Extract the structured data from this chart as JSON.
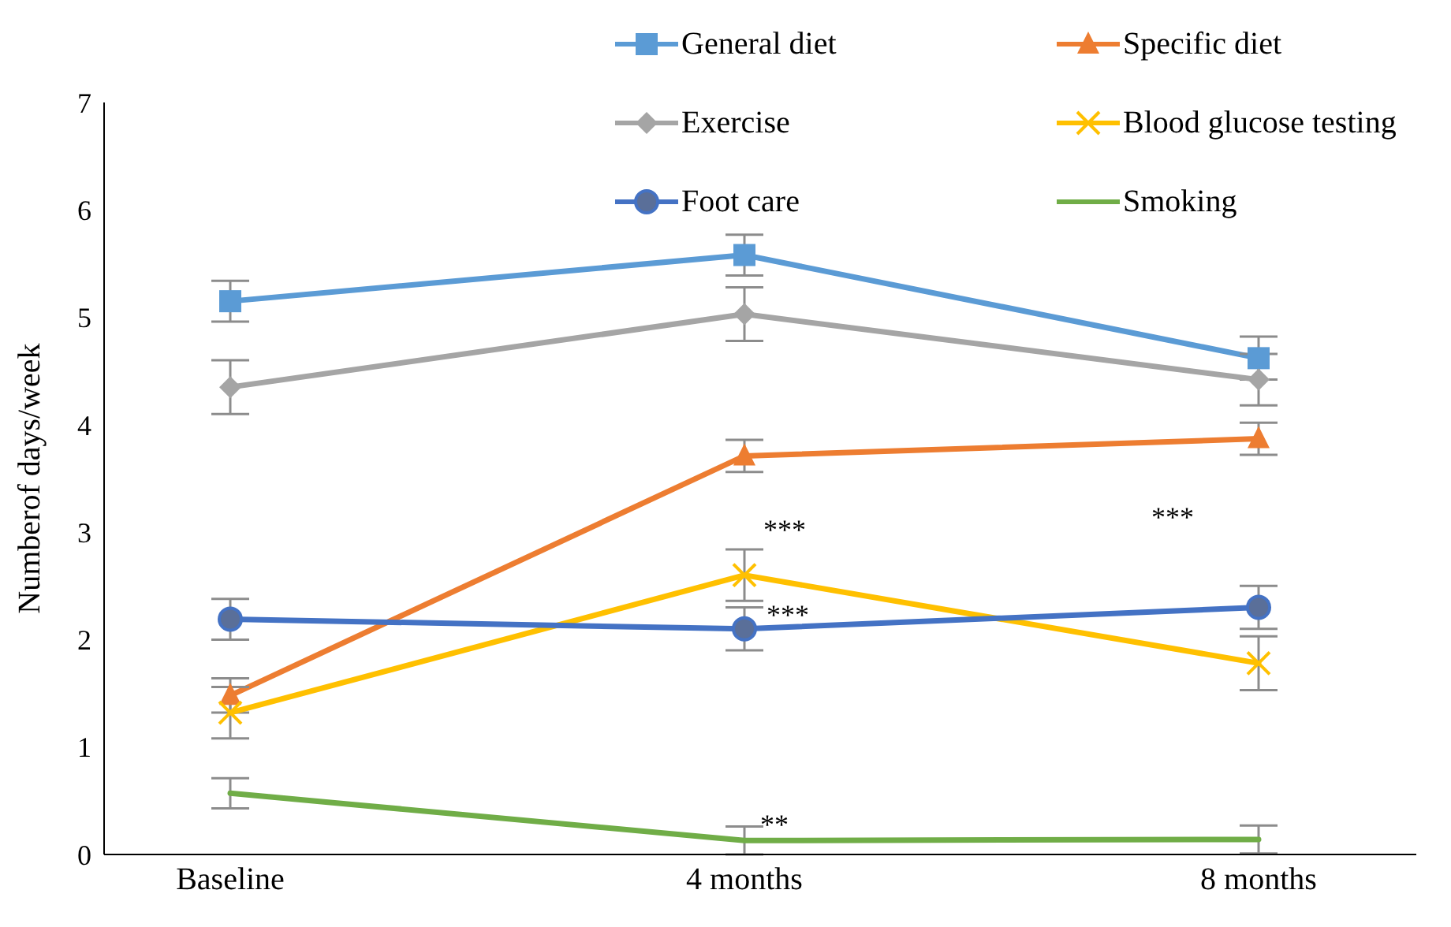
{
  "chart_data": {
    "type": "line",
    "ylabel": "Numberof days/week",
    "categories": [
      "Baseline",
      "4 months",
      "8 months"
    ],
    "ylim": [
      0,
      7
    ],
    "yticks": [
      0,
      1,
      2,
      3,
      4,
      5,
      6,
      7
    ],
    "grid": false,
    "legend": "top",
    "line_style": "solid",
    "series": [
      {
        "name": "General diet",
        "color": "#5b9bd5",
        "marker": "square",
        "values": [
          5.15,
          5.58,
          4.62
        ],
        "errors": [
          0.19,
          0.19,
          0.2
        ]
      },
      {
        "name": "Specific diet",
        "color": "#ed7d31",
        "marker": "triangle",
        "values": [
          1.48,
          3.71,
          3.87
        ],
        "errors": [
          0.16,
          0.15,
          0.15
        ]
      },
      {
        "name": "Exercise",
        "color": "#a5a5a5",
        "marker": "diamond",
        "values": [
          4.35,
          5.03,
          4.42
        ],
        "errors": [
          0.25,
          0.25,
          0.24
        ]
      },
      {
        "name": "Blood glucose testing",
        "color": "#ffc000",
        "marker": "cross",
        "values": [
          1.32,
          2.6,
          1.78
        ],
        "errors": [
          0.24,
          0.24,
          0.25
        ]
      },
      {
        "name": "Foot care",
        "color": "#4472c4",
        "marker": "circle",
        "values": [
          2.19,
          2.1,
          2.3
        ],
        "errors": [
          0.19,
          0.2,
          0.2
        ]
      },
      {
        "name": "Smoking",
        "color": "#70ad47",
        "marker": "none",
        "values": [
          0.57,
          0.13,
          0.14
        ],
        "errors": [
          0.14,
          0.13,
          0.13
        ]
      }
    ],
    "annotations": [
      "***",
      "***",
      "***",
      "**"
    ]
  }
}
